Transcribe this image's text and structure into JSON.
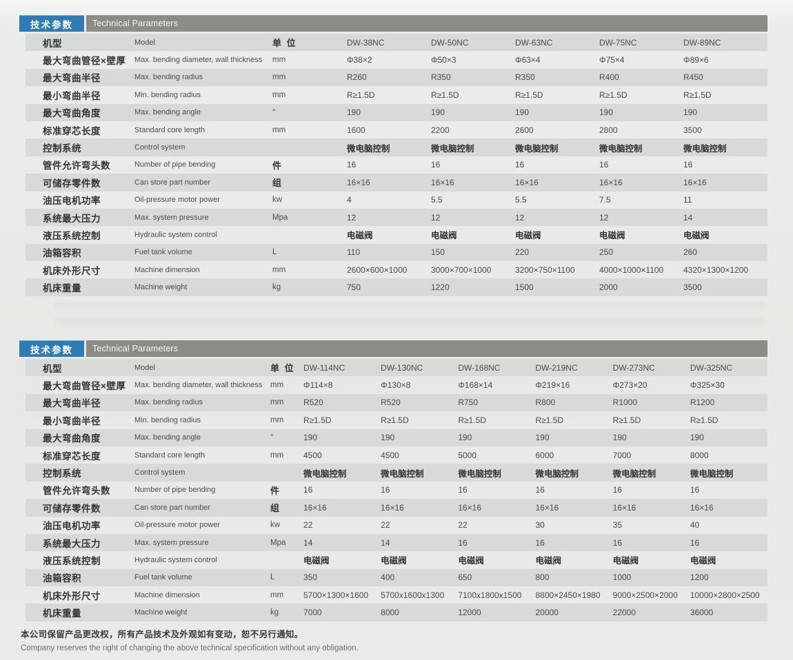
{
  "colors": {
    "accent_blue": "#2f7cb5",
    "bar_gray": "#8c8c86",
    "row_shade": "#d8dad7",
    "page_bg": "#e7e9e6"
  },
  "footer": {
    "cn": "本公司保留产品更改权，所有产品技术及外观如有变动，恕不另行通知。",
    "en": "Company reserves the right of changing the above technical specification without any obligation."
  },
  "tables": [
    {
      "badge_cn": "技术参数",
      "badge_en": "Technical Parameters",
      "col_header": {
        "cn": "机型",
        "en": "Model",
        "unit": "单 位"
      },
      "models": [
        "DW-38NC",
        "DW-50NC",
        "DW-63NC",
        "DW-75NC",
        "DW-89NC"
      ],
      "rows": [
        {
          "cn": "最大弯曲管径×壁厚",
          "en": "Max. bending diameter, wall thickness",
          "unit": "mm",
          "values": [
            "Φ38×2",
            "Φ50×3",
            "Φ63×4",
            "Φ75×4",
            "Φ89×6"
          ]
        },
        {
          "cn": "最大弯曲半径",
          "en": "Max. bending radius",
          "unit": "mm",
          "values": [
            "R260",
            "R350",
            "R350",
            "R400",
            "R450"
          ]
        },
        {
          "cn": "最小弯曲半径",
          "en": "Min. bending radius",
          "unit": "mm",
          "values": [
            "R≥1.5D",
            "R≥1.5D",
            "R≥1.5D",
            "R≥1.5D",
            "R≥1.5D"
          ]
        },
        {
          "cn": "最大弯曲角度",
          "en": "Max. bending angle",
          "unit": "°",
          "values": [
            "190",
            "190",
            "190",
            "190",
            "190"
          ]
        },
        {
          "cn": "标准穿芯长度",
          "en": "Standard core length",
          "unit": "mm",
          "values": [
            "1600",
            "2200",
            "2600",
            "2800",
            "3500"
          ]
        },
        {
          "cn": "控制系统",
          "en": "Control system",
          "unit": "",
          "values": [
            "微电脑控制",
            "微电脑控制",
            "微电脑控制",
            "微电脑控制",
            "微电脑控制"
          ]
        },
        {
          "cn": "管件允许弯头数",
          "en": "Number of pipe bending",
          "unit": "件",
          "values": [
            "16",
            "16",
            "16",
            "16",
            "16"
          ]
        },
        {
          "cn": "可储存零件数",
          "en": "Can store part number",
          "unit": "组",
          "values": [
            "16×16",
            "16×16",
            "16×16",
            "16×16",
            "16×16"
          ]
        },
        {
          "cn": "油压电机功率",
          "en": "Oil-pressure motor power",
          "unit": "kw",
          "values": [
            "4",
            "5.5",
            "5.5",
            "7.5",
            "11"
          ]
        },
        {
          "cn": "系统最大压力",
          "en": "Max. system pressure",
          "unit": "Mpa",
          "values": [
            "12",
            "12",
            "12",
            "12",
            "14"
          ]
        },
        {
          "cn": "液压系统控制",
          "en": "Hydraulic system control",
          "unit": "",
          "values": [
            "电磁阀",
            "电磁阀",
            "电磁阀",
            "电磁阀",
            "电磁阀"
          ]
        },
        {
          "cn": "油箱容积",
          "en": "Fuel tank volume",
          "unit": "L",
          "values": [
            "110",
            "150",
            "220",
            "250",
            "260"
          ]
        },
        {
          "cn": "机床外形尺寸",
          "en": "Machine dimension",
          "unit": "mm",
          "values": [
            "2600×600×1000",
            "3000×700×1000",
            "3200×750×1100",
            "4000×1000×1100",
            "4320×1300×1200"
          ]
        },
        {
          "cn": "机床重量",
          "en": "Machine weight",
          "unit": "kg",
          "values": [
            "750",
            "1220",
            "1500",
            "2000",
            "3500"
          ]
        }
      ]
    },
    {
      "badge_cn": "技术参数",
      "badge_en": "Technical Parameters",
      "col_header": {
        "cn": "机型",
        "en": "Model",
        "unit": "单 位"
      },
      "models": [
        "DW-114NC",
        "DW-130NC",
        "DW-168NC",
        "DW-219NC",
        "DW-273NC",
        "DW-325NC"
      ],
      "rows": [
        {
          "cn": "最大弯曲管径×壁厚",
          "en": "Max. bending diameter, wall thickness",
          "unit": "mm",
          "values": [
            "Φ114×8",
            "Φ130×8",
            "Φ168×14",
            "Φ219×16",
            "Φ273×20",
            "Φ325×30"
          ]
        },
        {
          "cn": "最大弯曲半径",
          "en": "Max. bending radius",
          "unit": "mm",
          "values": [
            "R520",
            "R520",
            "R750",
            "R800",
            "R1000",
            "R1200"
          ]
        },
        {
          "cn": "最小弯曲半径",
          "en": "Min. bending radius",
          "unit": "mm",
          "values": [
            "R≥1.5D",
            "R≥1.5D",
            "R≥1.5D",
            "R≥1.5D",
            "R≥1.5D",
            "R≥1.5D"
          ]
        },
        {
          "cn": "最大弯曲角度",
          "en": "Max. bending angle",
          "unit": "°",
          "values": [
            "190",
            "190",
            "190",
            "190",
            "190",
            "190"
          ]
        },
        {
          "cn": "标准穿芯长度",
          "en": "Standard core length",
          "unit": "mm",
          "values": [
            "4500",
            "4500",
            "5000",
            "6000",
            "7000",
            "8000"
          ]
        },
        {
          "cn": "控制系统",
          "en": "Control system",
          "unit": "",
          "values": [
            "微电脑控制",
            "微电脑控制",
            "微电脑控制",
            "微电脑控制",
            "微电脑控制",
            "微电脑控制"
          ]
        },
        {
          "cn": "管件允许弯头数",
          "en": "Number of pipe bending",
          "unit": "件",
          "values": [
            "16",
            "16",
            "16",
            "16",
            "16",
            "16"
          ]
        },
        {
          "cn": "可储存零件数",
          "en": "Can store part number",
          "unit": "组",
          "values": [
            "16×16",
            "16×16",
            "16×16",
            "16×16",
            "16×16",
            "16×16"
          ]
        },
        {
          "cn": "油压电机功率",
          "en": "Oil-pressure motor power",
          "unit": "kw",
          "values": [
            "22",
            "22",
            "22",
            "30",
            "35",
            "40"
          ]
        },
        {
          "cn": "系统最大压力",
          "en": "Max. system pressure",
          "unit": "Mpa",
          "values": [
            "14",
            "14",
            "16",
            "16",
            "16",
            "16"
          ]
        },
        {
          "cn": "液压系统控制",
          "en": "Hydraulic system control",
          "unit": "",
          "values": [
            "电磁阀",
            "电磁阀",
            "电磁阀",
            "电磁阀",
            "电磁阀",
            "电磁阀"
          ]
        },
        {
          "cn": "油箱容积",
          "en": "Fuel tank volume",
          "unit": "L",
          "values": [
            "350",
            "400",
            "650",
            "800",
            "1000",
            "1200"
          ]
        },
        {
          "cn": "机床外形尺寸",
          "en": "Machine dimension",
          "unit": "mm",
          "values": [
            "5700×1300×1600",
            "5700x1600x1300",
            "7100x1800x1500",
            "8800×2450×1980",
            "9000×2500×2000",
            "10000×2800×2500"
          ]
        },
        {
          "cn": "机床重量",
          "en": "Machine weight",
          "unit": "kg",
          "values": [
            "7000",
            "8000",
            "12000",
            "20000",
            "22000",
            "36000"
          ]
        }
      ]
    }
  ]
}
